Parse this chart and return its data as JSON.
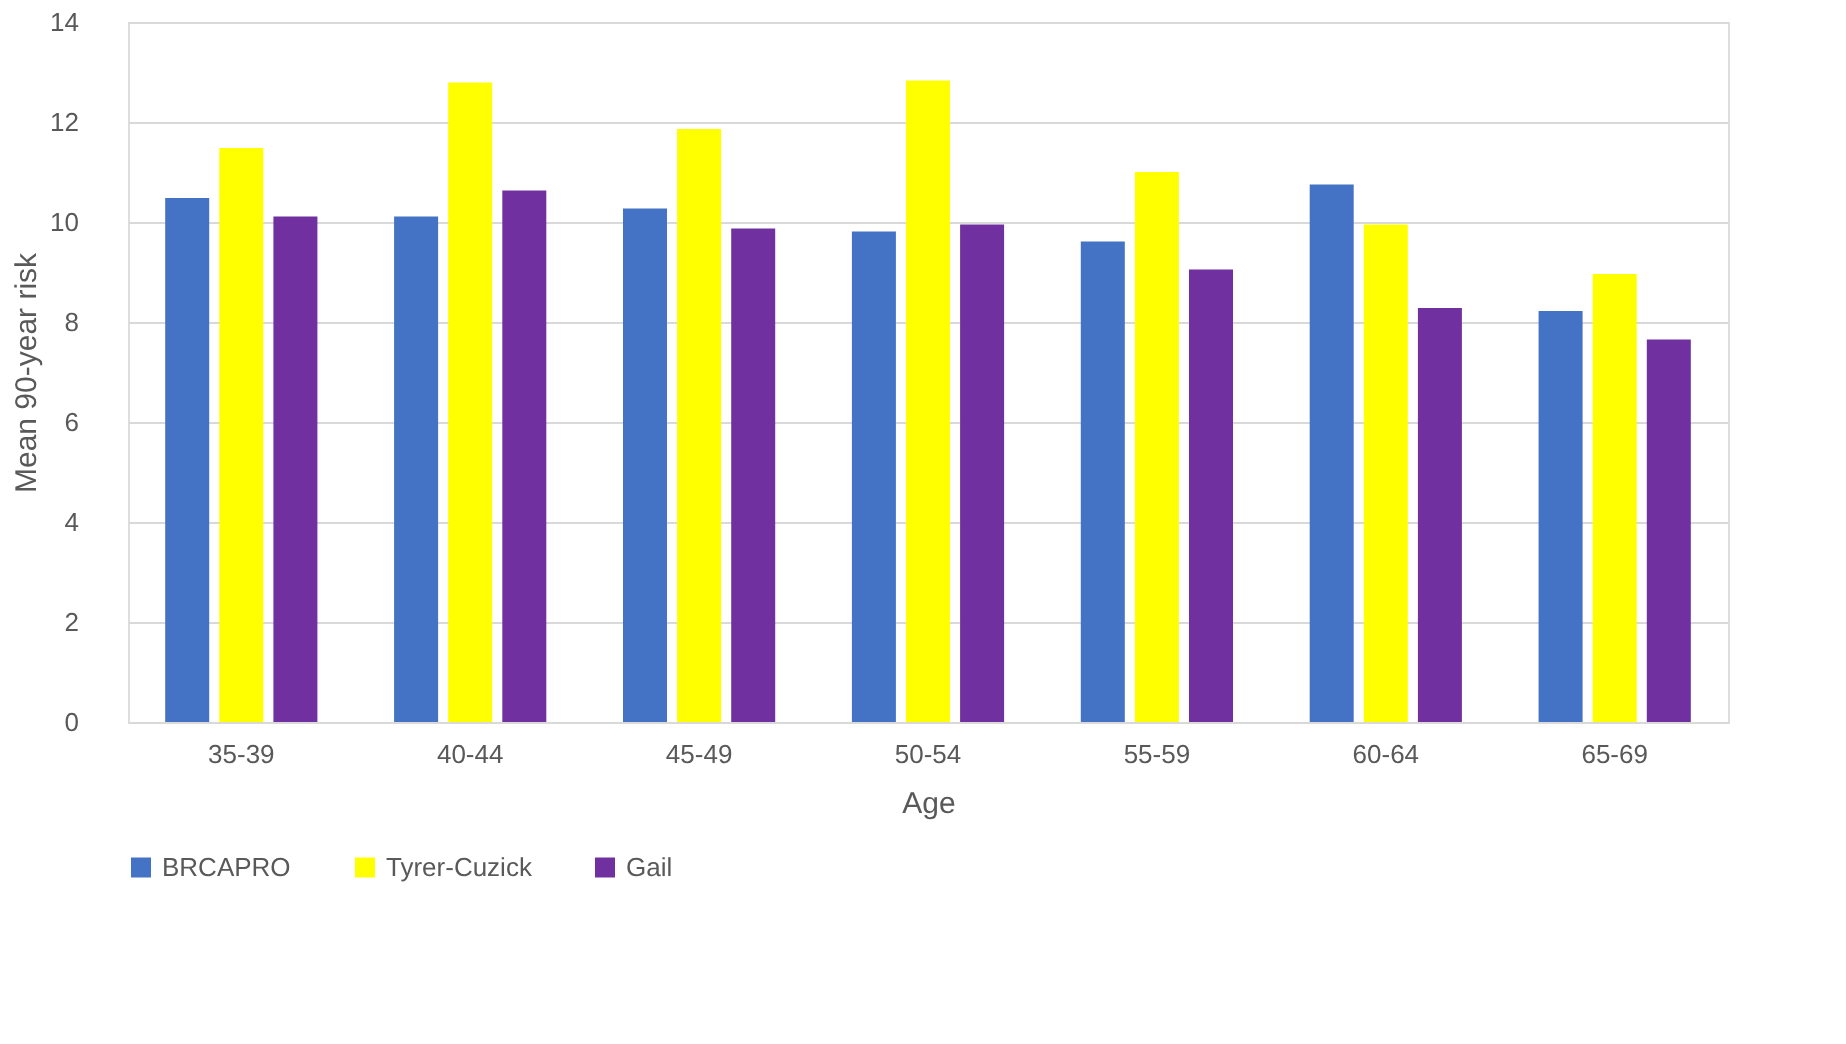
{
  "chart_data": {
    "type": "bar",
    "xlabel": "Age",
    "ylabel": "Mean 90-year risk",
    "categories": [
      "35-39",
      "40-44",
      "45-49",
      "50-54",
      "55-59",
      "60-64",
      "65-69"
    ],
    "series": [
      {
        "name": "BRCAPRO",
        "color": "#4472c4",
        "values": [
          10.48,
          10.11,
          10.27,
          9.81,
          9.61,
          10.75,
          8.22
        ]
      },
      {
        "name": "Tyrer-Cuzick",
        "color": "#ffff00",
        "values": [
          11.48,
          12.79,
          11.86,
          12.83,
          11.0,
          9.95,
          8.96
        ]
      },
      {
        "name": "Gail",
        "color": "#7030a0",
        "values": [
          10.11,
          10.63,
          9.87,
          9.95,
          9.05,
          8.28,
          7.65
        ]
      }
    ],
    "ylim": [
      0,
      14
    ],
    "yticks": [
      0,
      2,
      4,
      6,
      8,
      10,
      12,
      14
    ],
    "grid": "y",
    "legend": "bottom"
  }
}
